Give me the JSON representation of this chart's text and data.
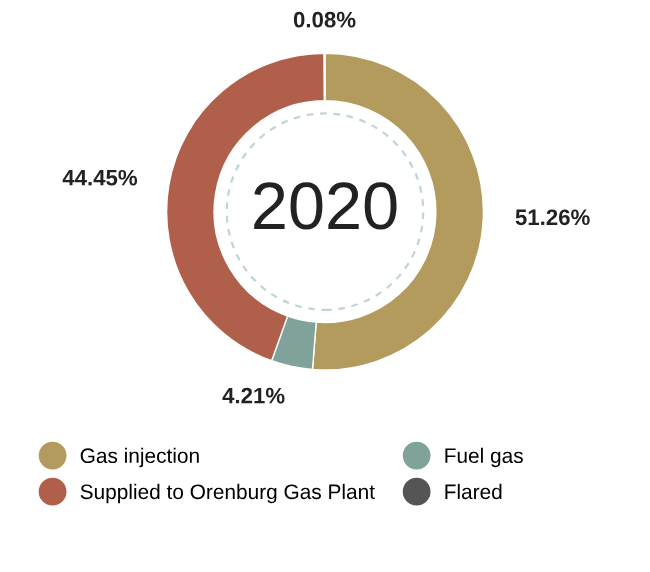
{
  "chart_data": {
    "type": "donut",
    "title": "2020",
    "categories": [
      "Gas injection",
      "Fuel gas",
      "Supplied to Orenburg Gas Plant",
      "Flared"
    ],
    "values": [
      51.26,
      4.21,
      44.45,
      0.08
    ],
    "colors": [
      "#b39b5e",
      "#7fa39a",
      "#b0604a",
      "#555555"
    ],
    "value_labels": [
      "51.26%",
      "4.21%",
      "44.45%",
      "0.08%"
    ],
    "legend": "bottom"
  }
}
